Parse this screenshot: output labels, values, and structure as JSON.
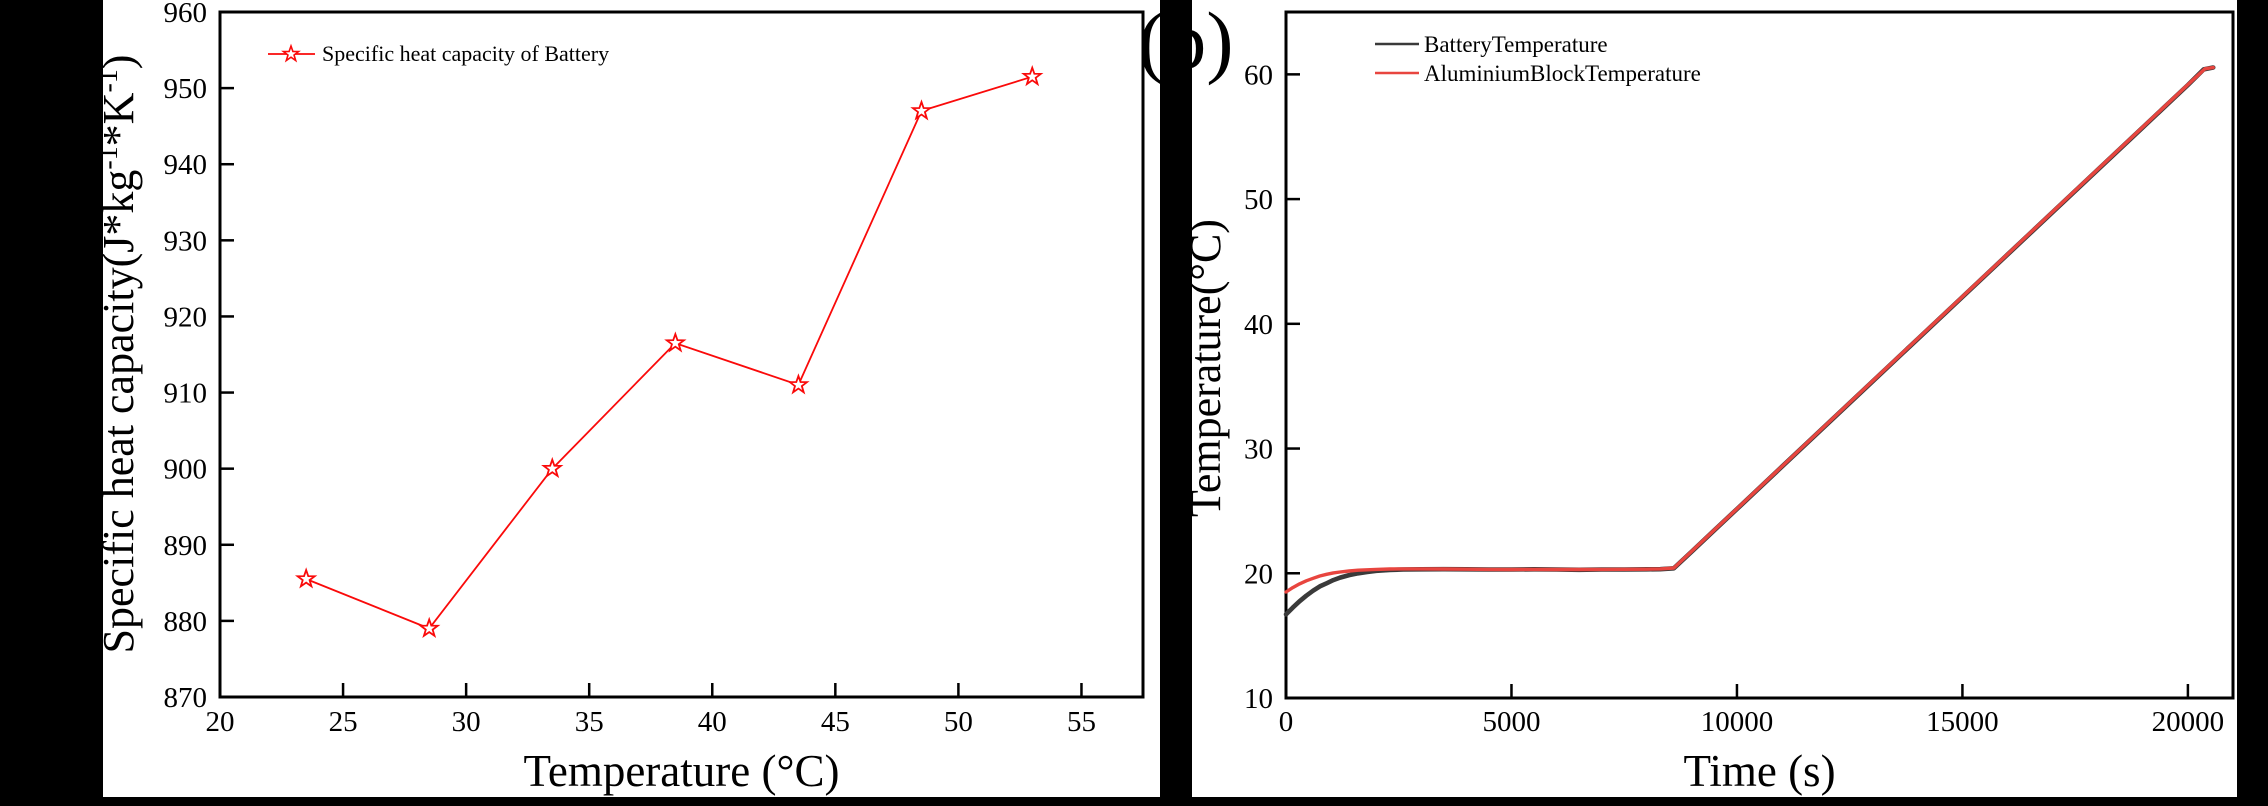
{
  "figure": {
    "panel_label": "(b)",
    "background": "#ffffff",
    "frame_color": "#000000"
  },
  "chart_data": [
    {
      "id": "specific_heat",
      "type": "scatter",
      "xlabel": "Temperature (°C)",
      "ylabel_parts": [
        {
          "t": "Specific heat capacity(J*kg"
        },
        {
          "t": "-1",
          "sup": true
        },
        {
          "t": "*K"
        },
        {
          "t": "-1",
          "sup": true
        },
        {
          "t": ")"
        }
      ],
      "legend": [
        {
          "label": "Specific heat capacity of Battery",
          "marker": "open-star",
          "color": "#fa0a0a"
        }
      ],
      "line_color": "#fa0a0a",
      "marker": "open-star",
      "xlim": [
        20,
        57.5
      ],
      "ylim": [
        870,
        960
      ],
      "xticks": [
        20,
        25,
        30,
        35,
        40,
        45,
        50,
        55
      ],
      "yticks": [
        870,
        880,
        890,
        900,
        910,
        920,
        930,
        940,
        950,
        960
      ],
      "points": [
        [
          23.5,
          885.5
        ],
        [
          28.5,
          879.0
        ],
        [
          33.5,
          900.0
        ],
        [
          38.5,
          916.5
        ],
        [
          43.5,
          911.0
        ],
        [
          48.5,
          947.0
        ],
        [
          53.0,
          951.5
        ]
      ]
    },
    {
      "id": "temp_vs_time",
      "type": "line",
      "xlabel": "Time (s)",
      "ylabel": "Temperature(°C)",
      "xlim": [
        0,
        21000
      ],
      "ylim": [
        10,
        65
      ],
      "xticks": [
        0,
        5000,
        10000,
        15000,
        20000
      ],
      "yticks": [
        10,
        20,
        30,
        40,
        50,
        60
      ],
      "series": [
        {
          "name": "BatteryTemperature",
          "color": "#3a3a3a",
          "points": [
            [
              0,
              16.7
            ],
            [
              150,
              17.25
            ],
            [
              300,
              17.75
            ],
            [
              450,
              18.2
            ],
            [
              600,
              18.6
            ],
            [
              750,
              18.95
            ],
            [
              900,
              19.2
            ],
            [
              1050,
              19.45
            ],
            [
              1200,
              19.65
            ],
            [
              1400,
              19.85
            ],
            [
              1600,
              20.0
            ],
            [
              1800,
              20.1
            ],
            [
              2000,
              20.2
            ],
            [
              2300,
              20.27
            ],
            [
              2600,
              20.3
            ],
            [
              3000,
              20.32
            ],
            [
              3500,
              20.33
            ],
            [
              4000,
              20.32
            ],
            [
              4500,
              20.3
            ],
            [
              5000,
              20.3
            ],
            [
              5500,
              20.32
            ],
            [
              6000,
              20.3
            ],
            [
              6500,
              20.28
            ],
            [
              7000,
              20.3
            ],
            [
              7500,
              20.3
            ],
            [
              8000,
              20.32
            ],
            [
              8300,
              20.33
            ],
            [
              8600,
              20.4
            ],
            [
              9000,
              21.75
            ],
            [
              9500,
              23.45
            ],
            [
              10000,
              25.15
            ],
            [
              11000,
              28.55
            ],
            [
              12000,
              31.95
            ],
            [
              13000,
              35.35
            ],
            [
              14000,
              38.75
            ],
            [
              15000,
              42.15
            ],
            [
              16000,
              45.55
            ],
            [
              17000,
              48.95
            ],
            [
              18000,
              52.35
            ],
            [
              19000,
              55.75
            ],
            [
              20000,
              59.15
            ],
            [
              20350,
              60.4
            ],
            [
              20560,
              60.55
            ]
          ]
        },
        {
          "name": "AluminiumBlockTemperature",
          "color": "#e8453f",
          "points": [
            [
              0,
              18.5
            ],
            [
              150,
              18.85
            ],
            [
              300,
              19.15
            ],
            [
              450,
              19.4
            ],
            [
              600,
              19.6
            ],
            [
              750,
              19.78
            ],
            [
              900,
              19.92
            ],
            [
              1050,
              20.03
            ],
            [
              1200,
              20.1
            ],
            [
              1400,
              20.18
            ],
            [
              1600,
              20.25
            ],
            [
              1800,
              20.28
            ],
            [
              2000,
              20.31
            ],
            [
              2300,
              20.34
            ],
            [
              2600,
              20.35
            ],
            [
              3000,
              20.35
            ],
            [
              3500,
              20.34
            ],
            [
              4000,
              20.33
            ],
            [
              4500,
              20.31
            ],
            [
              5000,
              20.3
            ],
            [
              5500,
              20.31
            ],
            [
              6000,
              20.3
            ],
            [
              6500,
              20.3
            ],
            [
              7000,
              20.31
            ],
            [
              7500,
              20.32
            ],
            [
              8000,
              20.33
            ],
            [
              8300,
              20.35
            ],
            [
              8600,
              20.42
            ],
            [
              9000,
              21.78
            ],
            [
              9500,
              23.48
            ],
            [
              10000,
              25.18
            ],
            [
              11000,
              28.58
            ],
            [
              12000,
              31.98
            ],
            [
              13000,
              35.38
            ],
            [
              14000,
              38.78
            ],
            [
              15000,
              42.18
            ],
            [
              16000,
              45.58
            ],
            [
              17000,
              48.98
            ],
            [
              18000,
              52.38
            ],
            [
              19000,
              55.78
            ],
            [
              20000,
              59.18
            ],
            [
              20380,
              60.45
            ],
            [
              20560,
              60.55
            ]
          ]
        }
      ]
    }
  ]
}
